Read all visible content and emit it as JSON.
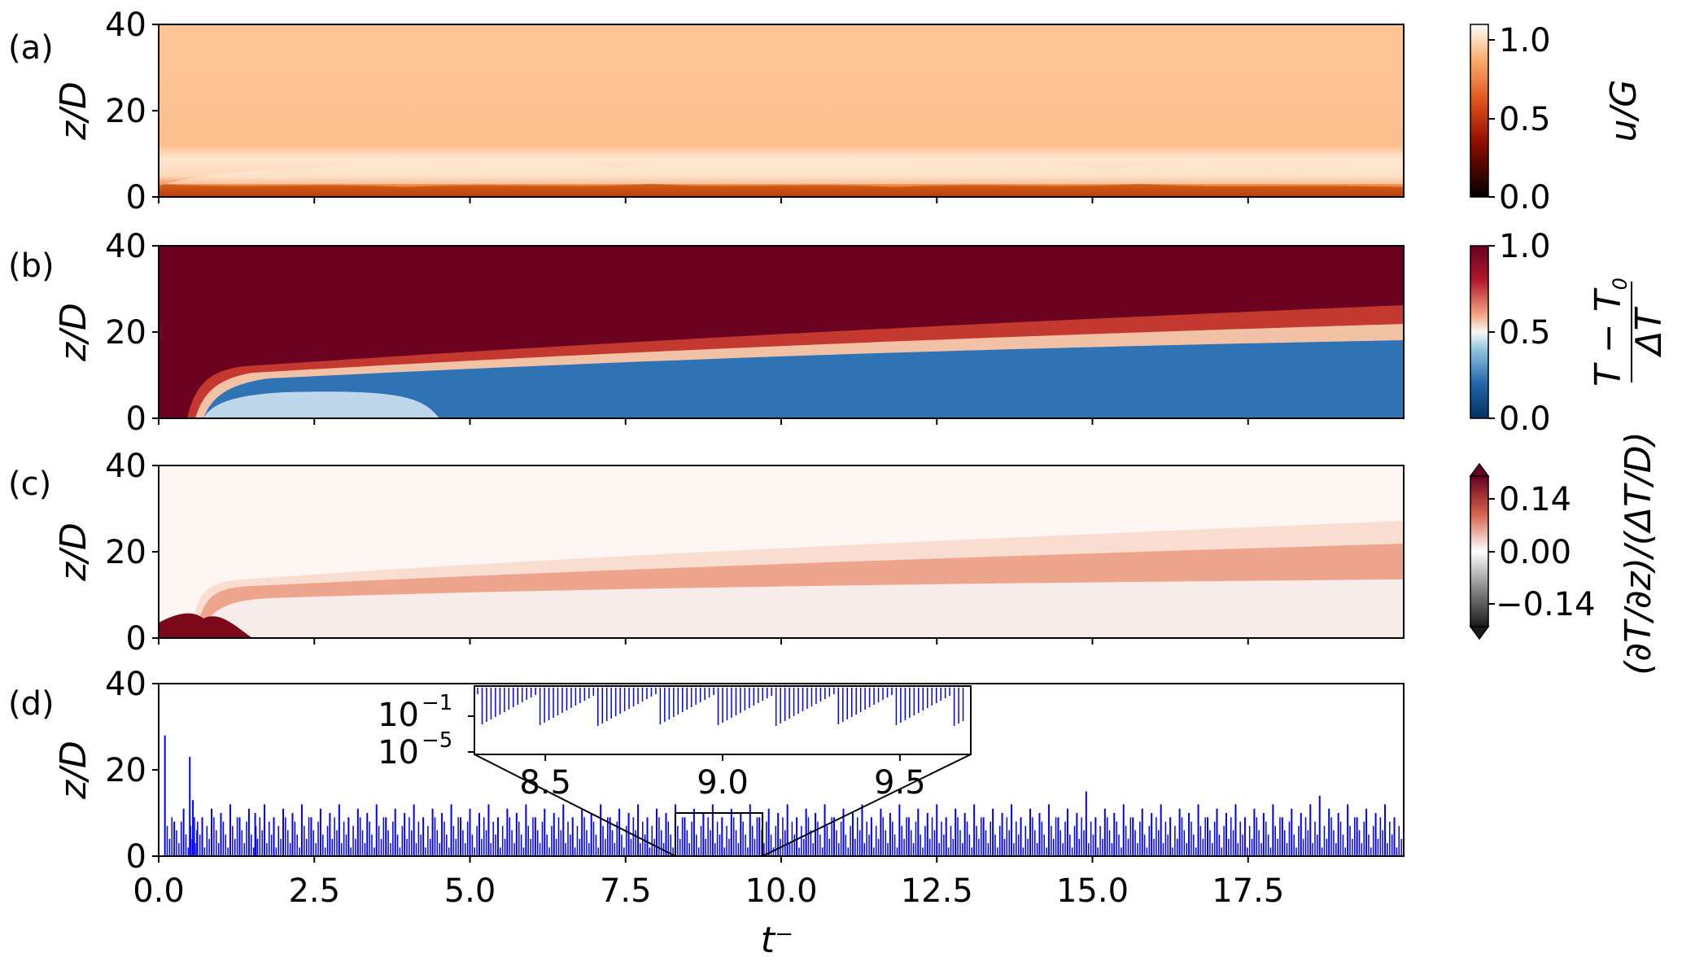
{
  "chart_data": [
    {
      "type": "heatmap",
      "panel_label": "(a)",
      "ylabel": "z/D",
      "ylim": [
        0,
        40
      ],
      "yticks": [
        "0",
        "20",
        "40"
      ],
      "xlim": [
        0,
        20
      ],
      "colorbar": {
        "label": "u/G",
        "colormap": "gist_heat",
        "range": [
          0.0,
          1.1
        ],
        "ticks": [
          "0.0",
          "0.5",
          "1.0"
        ]
      }
    },
    {
      "type": "heatmap",
      "panel_label": "(b)",
      "ylabel": "z/D",
      "ylim": [
        0,
        40
      ],
      "yticks": [
        "0",
        "20",
        "40"
      ],
      "xlim": [
        0,
        20
      ],
      "colorbar": {
        "label": "(T − T0)/ΔT",
        "label_num": "T − T",
        "label_num_sub": "0",
        "label_den": "ΔT",
        "colormap": "RdBu_r",
        "range": [
          0.0,
          1.0
        ],
        "ticks": [
          "0.0",
          "0.5",
          "1.0"
        ]
      }
    },
    {
      "type": "heatmap",
      "panel_label": "(c)",
      "ylabel": "z/D",
      "ylim": [
        0,
        40
      ],
      "yticks": [
        "0",
        "20",
        "40"
      ],
      "xlim": [
        0,
        20
      ],
      "colorbar": {
        "label": "(∂T/∂z)/(ΔT/D)",
        "colormap": "RdGy_r",
        "range": [
          -0.2,
          0.2
        ],
        "extend": "both",
        "ticks": [
          "−0.14",
          "0.00",
          "0.14"
        ]
      }
    },
    {
      "type": "bar",
      "panel_label": "(d)",
      "ylabel": "z/D",
      "xlabel": "t⁻",
      "ylim": [
        0,
        40
      ],
      "yticks": [
        "0",
        "20",
        "40"
      ],
      "xlim": [
        0,
        20
      ],
      "xticks": [
        "0.0",
        "2.5",
        "5.0",
        "7.5",
        "10.0",
        "12.5",
        "15.0",
        "17.5"
      ],
      "color": "#0000ff",
      "spikes_x": [
        0.1,
        0.25,
        0.4,
        0.5,
        0.55,
        0.7,
        0.85,
        1.0,
        1.15,
        1.3,
        1.45,
        1.55,
        1.7,
        1.85,
        2.0,
        2.15,
        2.3,
        2.45,
        2.6,
        2.75,
        2.9,
        3.05,
        3.2,
        3.35,
        3.5,
        3.65,
        3.8,
        3.95,
        4.1,
        4.25,
        4.4,
        4.55,
        4.7,
        4.85,
        5.0,
        5.15,
        5.3,
        5.45,
        5.6,
        5.75,
        5.9,
        6.05,
        6.2,
        6.35,
        6.5,
        6.65,
        6.8,
        6.95,
        7.1,
        7.25,
        7.4,
        7.55,
        7.7,
        7.85,
        8.0,
        8.15,
        8.3,
        8.45,
        8.6,
        8.75,
        8.9,
        9.05,
        9.2,
        9.35,
        9.5,
        9.65,
        9.8,
        9.95,
        10.1,
        10.25,
        10.4,
        10.55,
        10.7,
        10.85,
        11.0,
        11.15,
        11.3,
        11.45,
        11.6,
        11.75,
        11.9,
        12.05,
        12.2,
        12.35,
        12.5,
        12.65,
        12.8,
        12.95,
        13.1,
        13.25,
        13.4,
        13.55,
        13.7,
        13.85,
        14.0,
        14.15,
        14.3,
        14.45,
        14.6,
        14.75,
        14.9,
        15.05,
        15.2,
        15.35,
        15.5,
        15.65,
        15.8,
        15.95,
        16.1,
        16.25,
        16.4,
        16.55,
        16.7,
        16.85,
        17.0,
        17.15,
        17.3,
        17.45,
        17.6,
        17.75,
        17.9,
        18.05,
        18.2,
        18.35,
        18.5,
        18.65,
        18.8,
        18.95,
        19.1,
        19.25,
        19.4,
        19.55,
        19.7,
        19.85
      ],
      "spikes_z": [
        28,
        8,
        11,
        23,
        13,
        9,
        11,
        10,
        12,
        9,
        11,
        10,
        12,
        9,
        11,
        10,
        12,
        9,
        11,
        10,
        12,
        9,
        11,
        10,
        12,
        9,
        11,
        10,
        12,
        9,
        11,
        10,
        12,
        9,
        11,
        10,
        12,
        9,
        11,
        10,
        12,
        9,
        11,
        10,
        12,
        9,
        11,
        10,
        12,
        9,
        11,
        10,
        12,
        9,
        11,
        10,
        12,
        9,
        11,
        10,
        12,
        9,
        11,
        10,
        12,
        9,
        11,
        10,
        12,
        9,
        11,
        10,
        12,
        9,
        11,
        10,
        12,
        9,
        11,
        10,
        12,
        9,
        11,
        10,
        12,
        9,
        11,
        10,
        12,
        9,
        11,
        10,
        12,
        9,
        11,
        10,
        12,
        9,
        11,
        10,
        15,
        9,
        11,
        10,
        12,
        9,
        11,
        10,
        12,
        9,
        11,
        10,
        12,
        9,
        11,
        10,
        12,
        9,
        11,
        10,
        12,
        9,
        11,
        10,
        12,
        14,
        11,
        10,
        12,
        9,
        11,
        10,
        12,
        9
      ],
      "inset": {
        "xlim": [
          8.3,
          9.7
        ],
        "xticks": [
          "8.5",
          "9.0",
          "9.5"
        ],
        "yscale": "log",
        "yticks": [
          "10",
          "10"
        ],
        "ytick_exponents": [
          "−1",
          "−5"
        ],
        "zoom_box": {
          "x": [
            8.3,
            9.7
          ],
          "y": [
            0,
            10
          ]
        }
      }
    }
  ]
}
